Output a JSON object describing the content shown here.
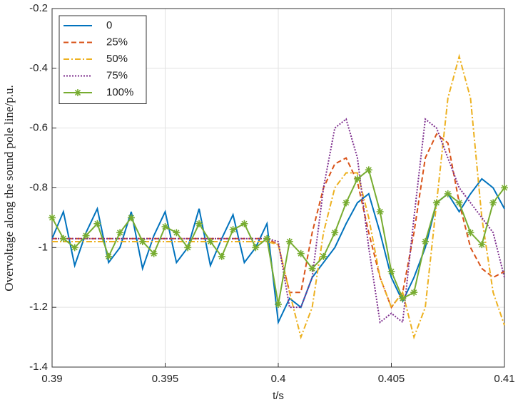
{
  "chart_data": {
    "type": "line",
    "xlabel": "t/s",
    "ylabel": "Overvoltage along the sound pole line/p.u.",
    "x": [
      0.39,
      0.3905,
      0.391,
      0.3915,
      0.392,
      0.3925,
      0.393,
      0.3935,
      0.394,
      0.3945,
      0.395,
      0.3955,
      0.396,
      0.3965,
      0.397,
      0.3975,
      0.398,
      0.3985,
      0.399,
      0.3995,
      0.4,
      0.4005,
      0.401,
      0.4015,
      0.402,
      0.4025,
      0.403,
      0.4035,
      0.404,
      0.4045,
      0.405,
      0.4055,
      0.406,
      0.4065,
      0.407,
      0.4075,
      0.408,
      0.4085,
      0.409,
      0.4095,
      0.41
    ],
    "series": [
      {
        "name": "0",
        "color": "#0072bd",
        "dash": "solid",
        "values": [
          -0.97,
          -0.88,
          -1.06,
          -0.95,
          -0.87,
          -1.05,
          -1.0,
          -0.88,
          -1.07,
          -0.96,
          -0.88,
          -1.05,
          -1.0,
          -0.87,
          -1.06,
          -0.97,
          -0.89,
          -1.05,
          -1.0,
          -0.92,
          -1.25,
          -1.17,
          -1.2,
          -1.1,
          -1.05,
          -1.0,
          -0.92,
          -0.85,
          -0.82,
          -0.95,
          -1.1,
          -1.18,
          -1.1,
          -1.0,
          -0.85,
          -0.82,
          -0.88,
          -0.82,
          -0.77,
          -0.8,
          -0.87
        ]
      },
      {
        "name": "25%",
        "color": "#d95319",
        "dash": "dashed",
        "values": [
          -0.97,
          -0.97,
          -0.97,
          -0.97,
          -0.97,
          -0.97,
          -0.97,
          -0.97,
          -0.97,
          -0.97,
          -0.97,
          -0.97,
          -0.97,
          -0.97,
          -0.97,
          -0.97,
          -0.97,
          -0.97,
          -0.97,
          -0.97,
          -0.99,
          -1.15,
          -1.15,
          -0.95,
          -0.8,
          -0.72,
          -0.7,
          -0.78,
          -0.95,
          -1.1,
          -1.2,
          -1.15,
          -0.95,
          -0.7,
          -0.62,
          -0.65,
          -0.85,
          -1.0,
          -1.07,
          -1.1,
          -1.08
        ]
      },
      {
        "name": "50%",
        "color": "#edb120",
        "dash": "dashdot",
        "values": [
          -0.98,
          -0.98,
          -0.98,
          -0.98,
          -0.98,
          -0.98,
          -0.98,
          -0.98,
          -0.98,
          -0.98,
          -0.98,
          -0.98,
          -0.98,
          -0.98,
          -0.98,
          -0.98,
          -0.98,
          -0.98,
          -0.98,
          -0.98,
          -0.99,
          -1.15,
          -1.3,
          -1.2,
          -0.95,
          -0.8,
          -0.75,
          -0.75,
          -0.9,
          -1.1,
          -1.2,
          -1.15,
          -1.3,
          -1.2,
          -0.85,
          -0.5,
          -0.36,
          -0.5,
          -0.9,
          -1.15,
          -1.26
        ]
      },
      {
        "name": "75%",
        "color": "#7e2f8e",
        "dash": "dotted",
        "values": [
          -0.97,
          -0.97,
          -0.97,
          -0.97,
          -0.97,
          -0.97,
          -0.97,
          -0.97,
          -0.97,
          -0.97,
          -0.97,
          -0.97,
          -0.97,
          -0.97,
          -0.97,
          -0.97,
          -0.97,
          -0.97,
          -0.97,
          -0.97,
          -0.98,
          -1.2,
          -1.2,
          -1.1,
          -0.8,
          -0.6,
          -0.57,
          -0.7,
          -1.0,
          -1.25,
          -1.22,
          -1.25,
          -0.9,
          -0.57,
          -0.6,
          -0.7,
          -0.8,
          -0.85,
          -0.9,
          -0.95,
          -1.1
        ]
      },
      {
        "name": "100%",
        "color": "#77ac30",
        "dash": "solid",
        "marker": "star",
        "values": [
          -0.9,
          -0.97,
          -1.0,
          -0.96,
          -0.92,
          -1.03,
          -0.95,
          -0.9,
          -0.98,
          -1.02,
          -0.93,
          -0.95,
          -1.0,
          -0.92,
          -0.98,
          -1.03,
          -0.94,
          -0.92,
          -1.0,
          -0.97,
          -1.19,
          -0.98,
          -1.02,
          -1.07,
          -1.03,
          -0.95,
          -0.85,
          -0.77,
          -0.74,
          -0.88,
          -1.08,
          -1.17,
          -1.15,
          -0.98,
          -0.85,
          -0.82,
          -0.85,
          -0.95,
          -0.99,
          -0.85,
          -0.8
        ]
      }
    ],
    "xlim": [
      0.39,
      0.41
    ],
    "xticks": [
      0.39,
      0.395,
      0.4,
      0.405,
      0.41
    ],
    "ylim": [
      -1.4,
      -0.2
    ],
    "yticks": [
      -1.4,
      -1.2,
      -1,
      -0.8,
      -0.6,
      -0.4,
      -0.2
    ],
    "grid": true,
    "legend": "upper left"
  }
}
